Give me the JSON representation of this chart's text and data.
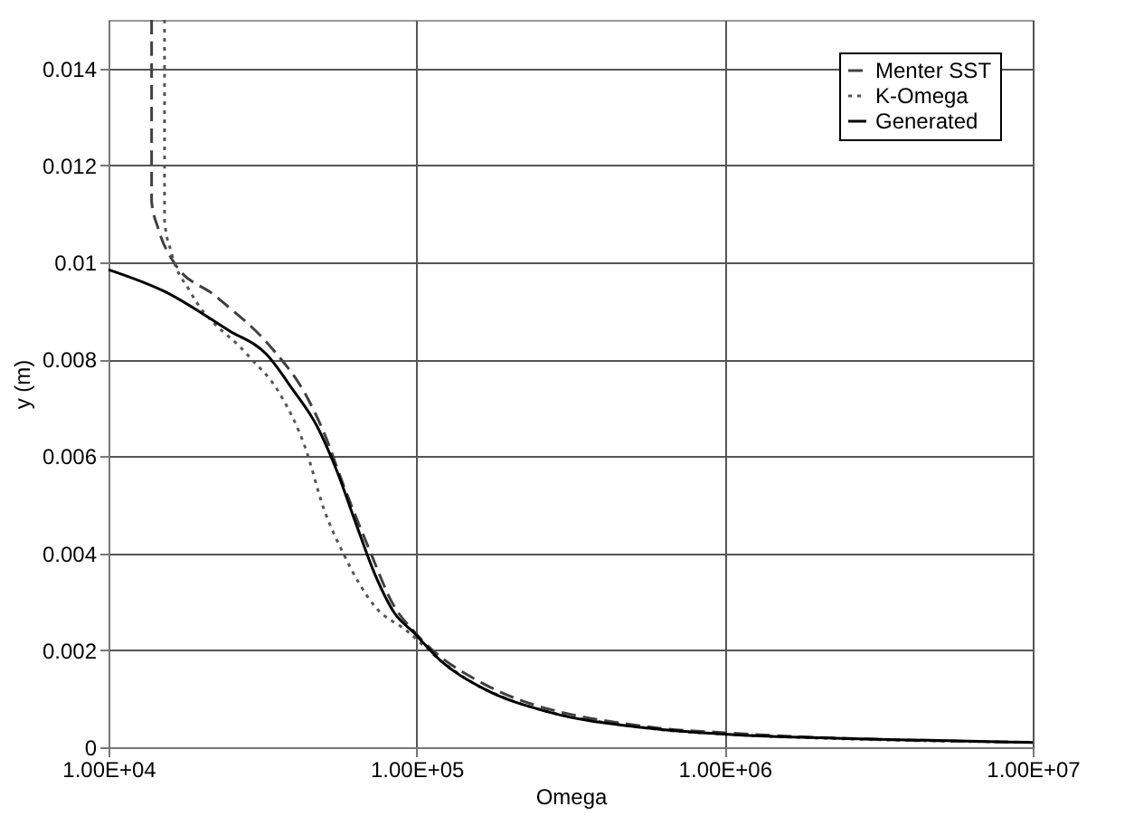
{
  "chart_data": {
    "type": "line",
    "xlabel": "Omega",
    "ylabel": "y (m)",
    "log": "x",
    "grid": true,
    "legend": "top right",
    "xlim": [
      10000,
      10000000
    ],
    "xticks": [
      {
        "value": 10000,
        "label": "1.00E+04"
      },
      {
        "value": 100000,
        "label": "1.00E+05"
      },
      {
        "value": 1000000,
        "label": "1.00E+06"
      },
      {
        "value": 10000000,
        "label": "1.00E+07"
      }
    ],
    "ylim": [
      0,
      0.015
    ],
    "yticks": [
      0,
      0.002,
      0.004,
      0.006,
      0.008,
      0.01,
      0.012,
      0.014
    ],
    "series": [
      {
        "name": "Menter SST",
        "color": "#404040",
        "line_style": "dashed",
        "x": [
          13800,
          13800,
          14500,
          16300,
          22300,
          34200,
          43400,
          50100,
          57800,
          70000,
          84700,
          97700,
          166000,
          550000,
          1000000,
          10000000
        ],
        "values": [
          0.015,
          0.01125,
          0.0107,
          0.01,
          0.0093,
          0.0082,
          0.0073,
          0.00648,
          0.00542,
          0.0041,
          0.0029,
          0.0024,
          0.0013,
          0.00043,
          0.0003,
          0.0001
        ]
      },
      {
        "name": "K-Omega",
        "color": "#555555",
        "line_style": "dotted",
        "x": [
          15200,
          15200,
          16000,
          18400,
          28200,
          35900,
          43400,
          50100,
          57800,
          73300,
          93000,
          119000,
          166000,
          550000,
          1000000,
          10000000
        ],
        "values": [
          0.015,
          0.01085,
          0.0102,
          0.0094,
          0.0081,
          0.0073,
          0.0062,
          0.0049,
          0.004,
          0.0029,
          0.0024,
          0.0018,
          0.0012,
          0.0004,
          0.00027,
          0.0001
        ]
      },
      {
        "name": "Generated",
        "color": "#000000",
        "line_style": "solid",
        "x": [
          10000,
          15200,
          24500,
          32600,
          39400,
          47700,
          55100,
          63500,
          73300,
          84700,
          97700,
          119000,
          166000,
          267000,
          550000,
          1000000,
          3400000,
          10000000
        ],
        "values": [
          0.00985,
          0.0094,
          0.0086,
          0.0081,
          0.0074,
          0.0066,
          0.0057,
          0.00462,
          0.00356,
          0.00277,
          0.00237,
          0.0018,
          0.0012,
          0.00073,
          0.0004,
          0.00027,
          0.00016,
          0.0001
        ]
      }
    ]
  }
}
